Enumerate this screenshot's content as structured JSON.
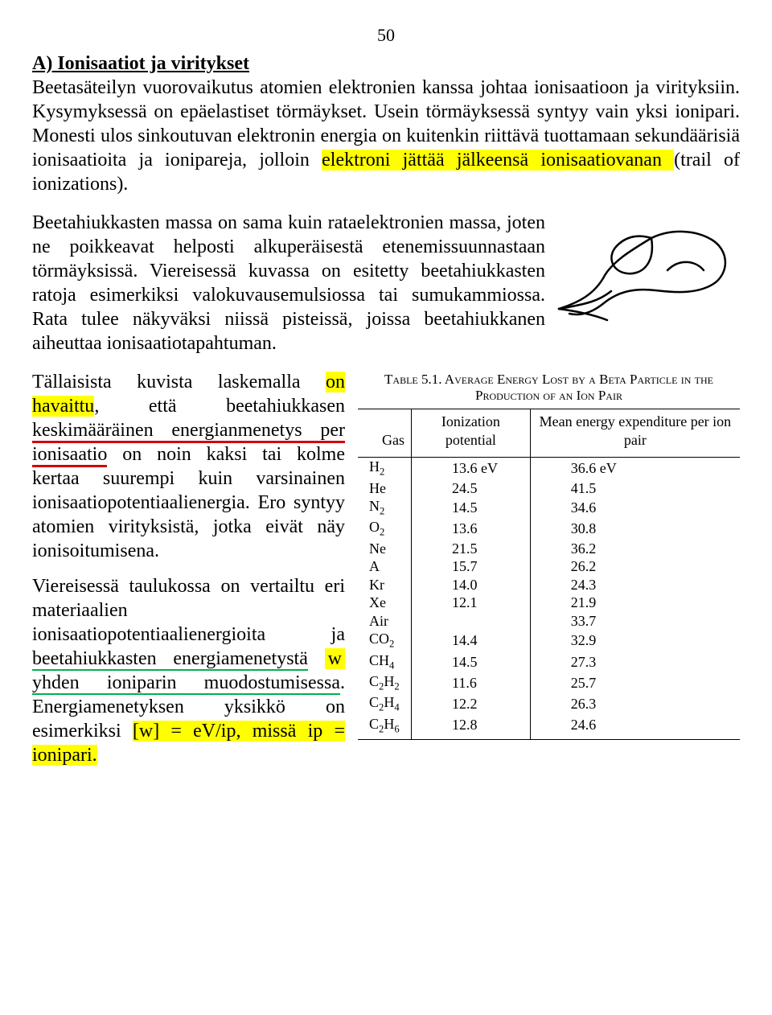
{
  "page_number": "50",
  "heading_label": "A)",
  "heading_text": "Ionisaatiot ja viritykset",
  "p1a": "Beetasäteilyn vuorovaikutus atomien elektronien kanssa johtaa ionisaatioon ja virityksiin. Kysymyksessä on epäelastiset törmäykset. Usein törmäyksessä syntyy vain yksi ionipari. Monesti ulos sinkoutuvan elektronin energia on kuitenkin riittävä tuottamaan sekundäärisiä ionisaatioita ja ionipareja, jolloin ",
  "p1hl": "elektroni jättää jälkeensä ionisaatiovanan ",
  "p1b": "(trail of ionizations).",
  "p2": "Beetahiukkasten massa on sama kuin rataelektronien massa, joten ne poikkeavat helposti alkuperäisestä etenemissuunnastaan törmäyksissä. Viereisessä kuvassa on esitetty beetahiukkasten ratoja esimerkiksi valokuvausemulsiossa tai sumukammiossa. Rata tulee näkyväksi niissä pisteissä, joissa beetahiukkanen aiheuttaa ionisaatiotapahtuman.",
  "p3a": "Tällaisista kuvista laskemalla ",
  "p3hl": "on havaittu",
  "p3b": ", että beetahiukkasen ",
  "p3red": "keskimääräinen energianmenetys per ionisaatio",
  "p3c": " on noin kaksi tai kolme kertaa suurempi kuin varsinainen ionisaatiopotentiaalienergia. Ero syntyy atomien virityksistä, jotka eivät näy ionisoitumisena.",
  "p4a": "Viereisessä taulukossa on vertailtu eri materiaalien ionisaatiopotentiaalienergioita ja ",
  "p4green": "beetahiukkasten energiamenetystä",
  "p4w": "w",
  "p4b": " yhden ioniparin muodostumisessa",
  "p4c": ". Energiamenetyksen yksikkö on esimerkiksi ",
  "p4d": "[w] = eV/ip, missä ip = ionipari.",
  "table": {
    "caption": "Table 5.1. Average Energy Lost by a Beta Particle in the Production of an Ion Pair",
    "col_gas": "Gas",
    "col_ion": "Ionization potential",
    "col_mean": "Mean energy expenditure per ion pair",
    "rows": [
      {
        "g": "H",
        "sub": "2",
        "v": "13.6 eV",
        "m": "36.6 eV"
      },
      {
        "g": "He",
        "sub": "",
        "v": "24.5",
        "m": "41.5"
      },
      {
        "g": "N",
        "sub": "2",
        "v": "14.5",
        "m": "34.6"
      },
      {
        "g": "O",
        "sub": "2",
        "v": "13.6",
        "m": "30.8"
      },
      {
        "g": "Ne",
        "sub": "",
        "v": "21.5",
        "m": "36.2"
      },
      {
        "g": "A",
        "sub": "",
        "v": "15.7",
        "m": "26.2"
      },
      {
        "g": "Kr",
        "sub": "",
        "v": "14.0",
        "m": "24.3"
      },
      {
        "g": "Xe",
        "sub": "",
        "v": "12.1",
        "m": "21.9"
      },
      {
        "g": "Air",
        "sub": "",
        "v": "",
        "m": "33.7"
      },
      {
        "g": "CO",
        "sub": "2",
        "v": "14.4",
        "m": "32.9"
      },
      {
        "g": "CH",
        "sub": "4",
        "v": "14.5",
        "m": "27.3"
      },
      {
        "g": "C",
        "sub": "2",
        "g2": "H",
        "sub2": "2",
        "v": "11.6",
        "m": "25.7"
      },
      {
        "g": "C",
        "sub": "2",
        "g2": "H",
        "sub2": "4",
        "v": "12.2",
        "m": "26.3"
      },
      {
        "g": "C",
        "sub": "2",
        "g2": "H",
        "sub2": "6",
        "v": "12.8",
        "m": "24.6"
      }
    ]
  },
  "colors": {
    "highlight": "#ffff00",
    "underline_red": "#d00000",
    "underline_green": "#00b050"
  }
}
